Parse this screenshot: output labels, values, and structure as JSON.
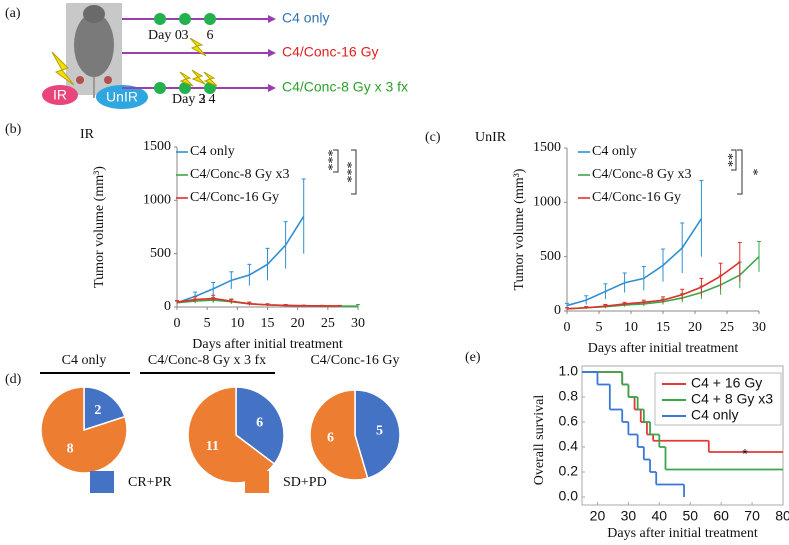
{
  "schematic": {
    "panel_label": "(a)",
    "groups": [
      "C4 only",
      "C4/Conc-16 Gy",
      "C4/Conc-8 Gy x 3 fx"
    ],
    "group_colors": [
      "#2e75b6",
      "#e02020",
      "#2ca02c"
    ],
    "days_top": [
      "Day 0",
      "3",
      "6"
    ],
    "days_bottom": [
      "Day 2",
      "3",
      "4"
    ],
    "ir": "IR",
    "unir": "UnIR"
  },
  "chart_data": [
    {
      "type": "line",
      "panel_label": "(b)",
      "title": "IR",
      "xlabel": "Days after initial treatment",
      "ylabel": "Tumor volume (mm³)",
      "xlim": [
        0,
        30
      ],
      "xticks": [
        0,
        5,
        10,
        15,
        20,
        25,
        30
      ],
      "ylim": [
        0,
        1500
      ],
      "yticks": [
        0,
        500,
        1000,
        1500
      ],
      "annotations": [
        "***",
        "***"
      ],
      "series": [
        {
          "name": "C4 only",
          "color": "#2f8fd3",
          "x": [
            0,
            3,
            6,
            9,
            12,
            15,
            18,
            21
          ],
          "values": [
            40,
            100,
            170,
            250,
            300,
            400,
            580,
            850
          ],
          "errors": [
            20,
            40,
            60,
            80,
            100,
            150,
            220,
            350
          ]
        },
        {
          "name": "C4/Conc-8 Gy x3",
          "color": "#3aa64a",
          "x": [
            0,
            3,
            6,
            9,
            12,
            15,
            18,
            21,
            24,
            27,
            30
          ],
          "values": [
            40,
            55,
            65,
            50,
            30,
            20,
            15,
            10,
            10,
            8,
            8
          ],
          "errors": [
            15,
            20,
            25,
            20,
            15,
            10,
            8,
            5,
            5,
            5,
            15
          ]
        },
        {
          "name": "C4/Conc-16 Gy",
          "color": "#e0302a",
          "x": [
            0,
            3,
            6,
            9,
            12,
            15,
            18,
            21,
            24,
            27
          ],
          "values": [
            45,
            70,
            80,
            55,
            30,
            20,
            15,
            12,
            10,
            10
          ],
          "errors": [
            15,
            25,
            30,
            20,
            15,
            10,
            8,
            5,
            5,
            5
          ]
        }
      ]
    },
    {
      "type": "line",
      "panel_label": "(c)",
      "title": "UnIR",
      "xlabel": "Days after initial treatment",
      "ylabel": "Tumor volume (mm³)",
      "xlim": [
        0,
        30
      ],
      "xticks": [
        0,
        5,
        10,
        15,
        20,
        25,
        30
      ],
      "ylim": [
        0,
        1500
      ],
      "yticks": [
        0,
        500,
        1000,
        1500
      ],
      "annotations": [
        "**",
        "*"
      ],
      "series": [
        {
          "name": "C4 only",
          "color": "#2f8fd3",
          "x": [
            0,
            3,
            6,
            9,
            12,
            15,
            18,
            21
          ],
          "values": [
            50,
            100,
            180,
            260,
            300,
            420,
            580,
            850
          ],
          "errors": [
            20,
            40,
            70,
            90,
            110,
            150,
            230,
            350
          ]
        },
        {
          "name": "C4/Conc-8 Gy x3",
          "color": "#3aa64a",
          "x": [
            0,
            3,
            6,
            9,
            12,
            15,
            18,
            21,
            24,
            27,
            30
          ],
          "values": [
            20,
            30,
            40,
            55,
            65,
            85,
            120,
            170,
            240,
            330,
            500
          ],
          "errors": [
            10,
            10,
            15,
            15,
            20,
            25,
            40,
            60,
            90,
            120,
            140
          ]
        },
        {
          "name": "C4/Conc-16 Gy",
          "color": "#e0302a",
          "x": [
            0,
            3,
            6,
            9,
            12,
            15,
            18,
            21,
            24,
            27
          ],
          "values": [
            20,
            30,
            45,
            65,
            80,
            100,
            150,
            220,
            320,
            450
          ],
          "errors": [
            10,
            10,
            15,
            15,
            20,
            30,
            50,
            80,
            120,
            180
          ]
        }
      ]
    },
    {
      "type": "pie",
      "panel_label": "(d)",
      "categories": [
        "CR+PR",
        "SD+PD"
      ],
      "colors": [
        "#4472c4",
        "#ed7d31"
      ],
      "pies": [
        {
          "title": "C4 only",
          "values": [
            2,
            8
          ]
        },
        {
          "title": "C4/Conc-8 Gy x 3 fx",
          "values": [
            6,
            11
          ]
        },
        {
          "title": "C4/Conc-16 Gy",
          "values": [
            5,
            6
          ]
        }
      ]
    },
    {
      "type": "step",
      "panel_label": "(e)",
      "xlabel": "Days after initial treatment",
      "ylabel": "Overall survival",
      "xlim": [
        15,
        80
      ],
      "xticks": [
        20,
        30,
        40,
        50,
        60,
        70,
        80
      ],
      "ylim": [
        0,
        1
      ],
      "yticks": [
        {
          "value": 0,
          "label": "0.0"
        },
        {
          "value": 0.2,
          "label": "0.2"
        },
        {
          "value": 0.4,
          "label": "0.4"
        },
        {
          "value": 0.6,
          "label": "0.6"
        },
        {
          "value": 0.8,
          "label": "0.8"
        },
        {
          "value": 1,
          "label": "1.0"
        }
      ],
      "annotations": [
        "*"
      ],
      "series": [
        {
          "name": "C4 + 16 Gy",
          "color": "#e03a3a",
          "x": [
            15,
            28,
            30,
            32,
            34,
            36,
            38,
            56,
            80
          ],
          "values": [
            1.0,
            0.9,
            0.8,
            0.7,
            0.6,
            0.5,
            0.45,
            0.36,
            0.36
          ]
        },
        {
          "name": "C4 + 8 Gy x3",
          "color": "#3aa64a",
          "x": [
            15,
            28,
            30,
            33,
            35,
            37,
            40,
            42,
            80
          ],
          "values": [
            1.0,
            0.9,
            0.8,
            0.7,
            0.6,
            0.5,
            0.4,
            0.22,
            0.22
          ]
        },
        {
          "name": "C4 only",
          "color": "#3a78d8",
          "x": [
            15,
            20,
            24,
            28,
            30,
            33,
            35,
            37,
            39,
            48
          ],
          "values": [
            1.0,
            0.9,
            0.7,
            0.6,
            0.5,
            0.4,
            0.3,
            0.2,
            0.1,
            0.0
          ]
        }
      ]
    }
  ]
}
